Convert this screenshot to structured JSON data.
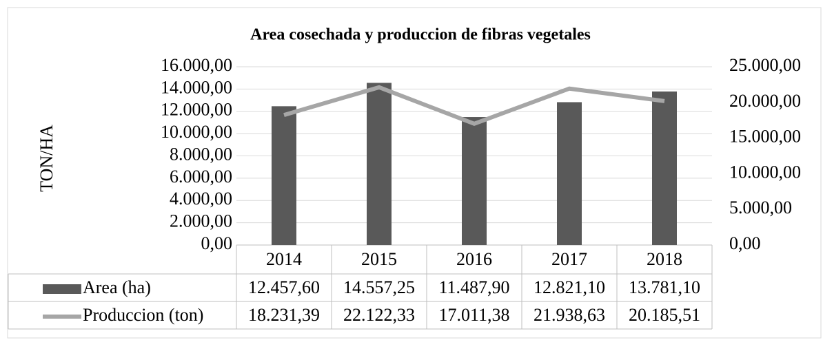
{
  "chart_data": {
    "type": "bar_line",
    "title": "Area cosechada y produccion de fibras vegetales",
    "y_label": "TON/HA",
    "categories": [
      "2014",
      "2015",
      "2016",
      "2017",
      "2018"
    ],
    "series": [
      {
        "name": "Area (ha)",
        "type": "bar",
        "color": "#595959",
        "values": [
          12457.6,
          14557.25,
          11487.9,
          12821.1,
          13781.1
        ],
        "value_labels": [
          "12.457,60",
          "14.557,25",
          "11.487,90",
          "12.821,10",
          "13.781,10"
        ]
      },
      {
        "name": "Produccion (ton)",
        "type": "line",
        "axis": "y2",
        "color": "#a6a6a6",
        "values": [
          18231.39,
          22122.33,
          17011.38,
          21938.63,
          20185.51
        ],
        "value_labels": [
          "18.231,39",
          "22.122,33",
          "17.011,38",
          "21.938,63",
          "20.185,51"
        ]
      }
    ],
    "ylim": [
      0,
      16000
    ],
    "yticks": [
      {
        "value": 0,
        "label": "0,00"
      },
      {
        "value": 2000,
        "label": "2.000,00"
      },
      {
        "value": 4000,
        "label": "4.000,00"
      },
      {
        "value": 6000,
        "label": "6.000,00"
      },
      {
        "value": 8000,
        "label": "8.000,00"
      },
      {
        "value": 10000,
        "label": "10.000,00"
      },
      {
        "value": 12000,
        "label": "12.000,00"
      },
      {
        "value": 14000,
        "label": "14.000,00"
      },
      {
        "value": 16000,
        "label": "16.000,00"
      }
    ],
    "y2lim": [
      0,
      25000
    ],
    "y2ticks": [
      {
        "value": 0,
        "label": "0,00"
      },
      {
        "value": 5000,
        "label": "5.000,00"
      },
      {
        "value": 10000,
        "label": "10.000,00"
      },
      {
        "value": 15000,
        "label": "15.000,00"
      },
      {
        "value": 20000,
        "label": "20.000,00"
      },
      {
        "value": 25000,
        "label": "25.000,00"
      }
    ],
    "grid": true
  }
}
